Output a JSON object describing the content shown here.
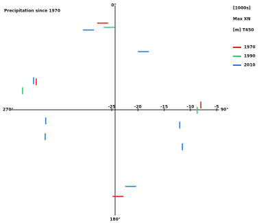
{
  "chart_data": {
    "type": "segments",
    "title": "Precipitation since 1970",
    "notes": [
      "[1000s]",
      "Max XN",
      "[m] T450"
    ],
    "direction_labels": {
      "top": "0°",
      "right": "90°",
      "bottom": "180°",
      "left": "270°"
    },
    "xticks": [
      -25,
      -20,
      -15,
      -10,
      -5
    ],
    "series": [
      {
        "name": "1970",
        "color": "#e8231f",
        "x": [
          -26.7,
          -39.3,
          -8.1,
          -23.8
        ],
        "values": [
          16.4,
          5.3,
          0.9,
          -16.4
        ],
        "orientation": [
          "h",
          "v",
          "v",
          "h"
        ]
      },
      {
        "name": "1990",
        "color": "#22d37a",
        "x": [
          -25.5,
          -41.9,
          -8.8
        ],
        "values": [
          15.6,
          3.6,
          -0.1
        ],
        "orientation": [
          "h",
          "v",
          "v"
        ]
      },
      {
        "name": "2010",
        "color": "#2a7fe0",
        "x": [
          -29.4,
          -19.0,
          -39.8,
          -37.5,
          -37.6,
          -12.1,
          -11.6,
          -21.4
        ],
        "values": [
          15.1,
          11.0,
          5.5,
          -2.1,
          -5.1,
          -2.9,
          -7.0,
          -14.5
        ],
        "orientation": [
          "h",
          "h",
          "v",
          "v",
          "v",
          "v",
          "v",
          "h"
        ]
      }
    ]
  }
}
